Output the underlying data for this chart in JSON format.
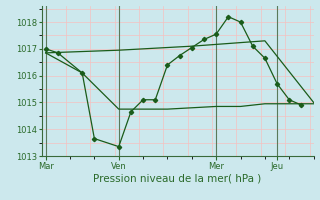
{
  "title": "Pression niveau de la mer( hPa )",
  "bg_color": "#cce8ed",
  "grid_major_color": "#f5c0c0",
  "grid_minor_color": "#e8e8e8",
  "vline_color": "#5a7a5a",
  "line_color": "#1a5c1a",
  "ylim": [
    1013.0,
    1018.6
  ],
  "yticks": [
    1013,
    1014,
    1015,
    1016,
    1017,
    1018
  ],
  "xtick_labels": [
    "Mar",
    "Ven",
    "Mer",
    "Jeu"
  ],
  "xtick_positions": [
    0,
    36,
    84,
    114
  ],
  "vline_positions": [
    0,
    36,
    84,
    114
  ],
  "xlim": [
    -2,
    132
  ],
  "line1_x": [
    0,
    6,
    18,
    24,
    36,
    42,
    48,
    54,
    60,
    66,
    72,
    78,
    84,
    90,
    96,
    102,
    108,
    114,
    120,
    126
  ],
  "line1_y": [
    1017.0,
    1016.85,
    1016.1,
    1013.65,
    1013.35,
    1014.65,
    1015.1,
    1015.1,
    1016.4,
    1016.75,
    1017.05,
    1017.35,
    1017.55,
    1018.2,
    1018.0,
    1017.1,
    1016.65,
    1015.7,
    1015.1,
    1014.9
  ],
  "line2_x": [
    0,
    18,
    36,
    60,
    84,
    96,
    108,
    120,
    132
  ],
  "line2_y": [
    1016.85,
    1016.1,
    1014.75,
    1014.75,
    1014.85,
    1014.85,
    1014.95,
    1014.95,
    1014.95
  ],
  "line3_x": [
    0,
    36,
    72,
    108,
    132
  ],
  "line3_y": [
    1016.85,
    1016.95,
    1017.1,
    1017.3,
    1015.0
  ],
  "label_color": "#2a6a2a",
  "label_fontsize": 7.5,
  "tick_fontsize": 6.0
}
